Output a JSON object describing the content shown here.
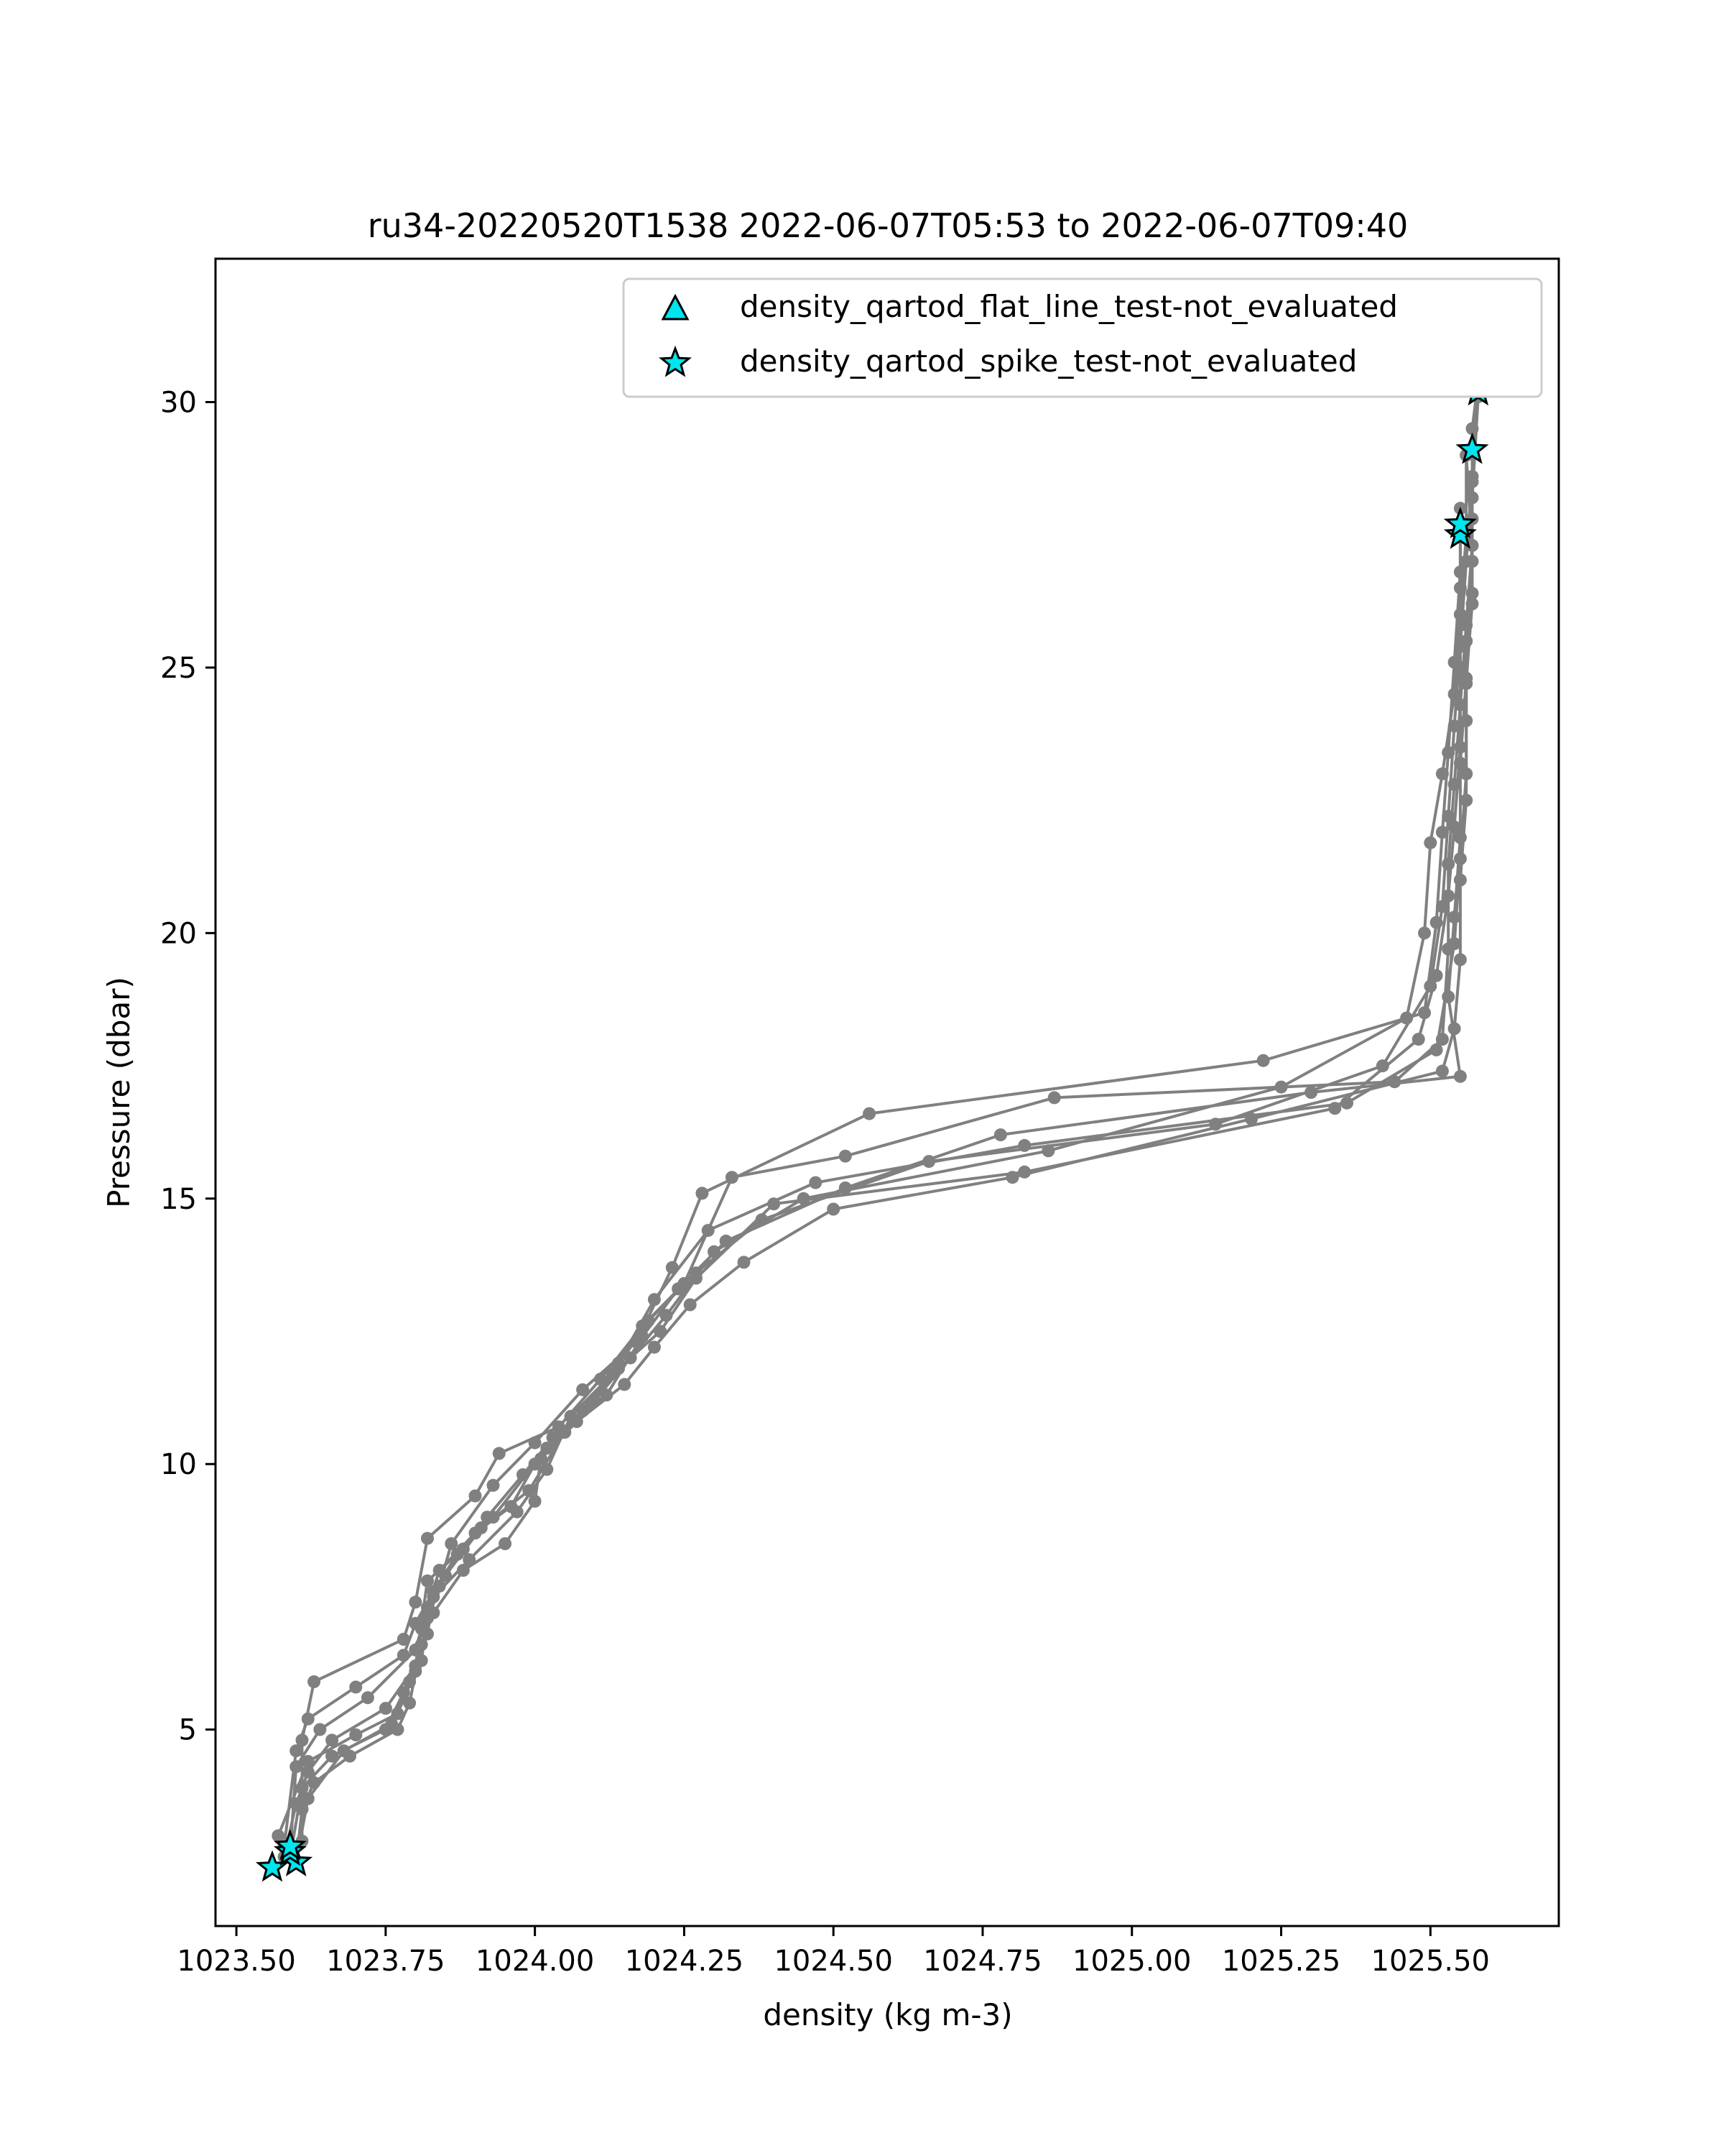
{
  "chart_data": {
    "type": "line",
    "title": "ru34-20220520T1538 2022-06-07T05:53 to 2022-06-07T09:40",
    "xlabel": "density (kg m-3)",
    "ylabel": "Pressure (dbar)",
    "xlim": [
      1023.465,
      1025.715
    ],
    "ylim": [
      32.7,
      1.3
    ],
    "y_inverted": true,
    "grid": false,
    "x_ticks": [
      1023.5,
      1023.75,
      1024.0,
      1024.25,
      1024.5,
      1024.75,
      1025.0,
      1025.25,
      1025.5
    ],
    "x_tick_labels": [
      "1023.50",
      "1023.75",
      "1024.00",
      "1024.25",
      "1024.50",
      "1024.75",
      "1025.00",
      "1025.25",
      "1025.50"
    ],
    "y_ticks": [
      5,
      10,
      15,
      20,
      25,
      30
    ],
    "y_tick_labels": [
      "5",
      "10",
      "15",
      "20",
      "25",
      "30"
    ],
    "line_color": "#808080",
    "marker_fill": "#00e5ee",
    "legend": {
      "location": "upper right",
      "entries": [
        {
          "label": "density_qartod_flat_line_test-not_evaluated",
          "marker": "triangle",
          "color": "#00e5ee"
        },
        {
          "label": "density_qartod_spike_test-not_evaluated",
          "marker": "star",
          "color": "#00e5ee"
        }
      ]
    },
    "series": [
      {
        "points": [
          [
            1023.6,
            2.5
          ],
          [
            1023.61,
            3.5
          ],
          [
            1023.63,
            4.0
          ],
          [
            1023.69,
            4.5
          ],
          [
            1023.77,
            5.0
          ],
          [
            1023.79,
            5.5
          ],
          [
            1023.81,
            6.6
          ],
          [
            1023.83,
            7.2
          ],
          [
            1023.88,
            8.0
          ],
          [
            1023.95,
            8.5
          ],
          [
            1024.0,
            9.3
          ],
          [
            1024.01,
            10.1
          ],
          [
            1024.07,
            10.8
          ],
          [
            1024.15,
            11.5
          ],
          [
            1024.2,
            12.2
          ],
          [
            1024.26,
            13.0
          ],
          [
            1024.35,
            13.8
          ],
          [
            1024.5,
            14.8
          ],
          [
            1024.8,
            15.4
          ],
          [
            1025.2,
            16.5
          ],
          [
            1025.52,
            17.4
          ],
          [
            1025.54,
            18.2
          ],
          [
            1025.55,
            19.5
          ],
          [
            1025.55,
            21.0
          ],
          [
            1025.56,
            22.5
          ],
          [
            1025.56,
            24.0
          ],
          [
            1025.56,
            25.5
          ],
          [
            1025.57,
            27.0
          ],
          [
            1025.57,
            28.5
          ],
          [
            1025.58,
            30.2
          ]
        ]
      },
      {
        "points": [
          [
            1023.58,
            2.6
          ],
          [
            1023.6,
            3.6
          ],
          [
            1023.62,
            4.2
          ],
          [
            1023.66,
            4.8
          ],
          [
            1023.75,
            5.4
          ],
          [
            1023.8,
            6.2
          ],
          [
            1023.81,
            7.0
          ],
          [
            1023.82,
            7.8
          ],
          [
            1023.88,
            8.4
          ],
          [
            1023.93,
            9.0
          ],
          [
            1024.02,
            10.3
          ],
          [
            1024.08,
            11.0
          ],
          [
            1024.14,
            11.8
          ],
          [
            1024.21,
            12.5
          ],
          [
            1024.27,
            13.5
          ],
          [
            1024.4,
            14.9
          ],
          [
            1024.82,
            15.5
          ],
          [
            1025.34,
            16.7
          ],
          [
            1025.48,
            18.0
          ],
          [
            1025.51,
            19.2
          ],
          [
            1025.53,
            20.7
          ],
          [
            1025.54,
            22.0
          ],
          [
            1025.55,
            23.5
          ],
          [
            1025.55,
            25.0
          ],
          [
            1025.55,
            26.5
          ],
          [
            1025.55,
            27.6
          ]
        ]
      },
      {
        "points": [
          [
            1023.59,
            2.7
          ],
          [
            1023.6,
            4.3
          ],
          [
            1023.64,
            5.0
          ],
          [
            1023.72,
            5.6
          ],
          [
            1023.8,
            6.5
          ],
          [
            1023.82,
            7.3
          ],
          [
            1023.84,
            8.0
          ],
          [
            1023.9,
            8.7
          ],
          [
            1023.96,
            9.2
          ],
          [
            1024.0,
            10.0
          ],
          [
            1024.05,
            10.6
          ],
          [
            1024.1,
            11.2
          ],
          [
            1024.16,
            12.0
          ],
          [
            1024.22,
            12.8
          ],
          [
            1024.3,
            14.0
          ],
          [
            1024.45,
            15.0
          ],
          [
            1024.86,
            15.9
          ],
          [
            1025.25,
            17.1
          ],
          [
            1025.46,
            18.4
          ],
          [
            1025.49,
            20.0
          ],
          [
            1025.5,
            21.7
          ],
          [
            1025.52,
            23.0
          ],
          [
            1025.54,
            24.5
          ],
          [
            1025.55,
            26.0
          ],
          [
            1025.56,
            27.5
          ],
          [
            1025.56,
            29.0
          ]
        ]
      },
      {
        "points": [
          [
            1023.58,
            2.8
          ],
          [
            1023.6,
            4.6
          ],
          [
            1023.62,
            5.2
          ],
          [
            1023.7,
            5.8
          ],
          [
            1023.78,
            6.4
          ],
          [
            1023.8,
            7.0
          ],
          [
            1023.83,
            7.6
          ],
          [
            1023.87,
            8.3
          ],
          [
            1023.92,
            9.0
          ],
          [
            1023.98,
            9.8
          ],
          [
            1024.03,
            10.5
          ],
          [
            1024.12,
            11.3
          ],
          [
            1024.18,
            12.4
          ],
          [
            1024.24,
            13.3
          ],
          [
            1024.32,
            14.2
          ],
          [
            1024.52,
            15.2
          ],
          [
            1024.78,
            16.2
          ],
          [
            1025.3,
            17.0
          ],
          [
            1025.55,
            17.3
          ],
          [
            1025.53,
            18.8
          ],
          [
            1025.54,
            20.3
          ],
          [
            1025.55,
            21.8
          ],
          [
            1025.55,
            23.2
          ],
          [
            1025.56,
            24.8
          ],
          [
            1025.57,
            26.2
          ],
          [
            1025.57,
            27.8
          ],
          [
            1025.57,
            29.5
          ],
          [
            1025.59,
            31.3
          ]
        ]
      },
      {
        "points": [
          [
            1023.61,
            2.9
          ],
          [
            1023.61,
            4.8
          ],
          [
            1023.63,
            5.9
          ],
          [
            1023.78,
            6.7
          ],
          [
            1023.8,
            7.4
          ],
          [
            1023.82,
            8.6
          ],
          [
            1023.9,
            9.4
          ],
          [
            1023.94,
            10.2
          ],
          [
            1024.04,
            10.7
          ],
          [
            1024.11,
            11.6
          ],
          [
            1024.18,
            12.6
          ],
          [
            1024.25,
            13.4
          ],
          [
            1024.33,
            15.4
          ],
          [
            1024.52,
            15.8
          ],
          [
            1024.87,
            16.9
          ],
          [
            1025.44,
            17.2
          ],
          [
            1025.52,
            18.0
          ],
          [
            1025.53,
            19.7
          ],
          [
            1025.53,
            21.3
          ],
          [
            1025.54,
            22.8
          ],
          [
            1025.55,
            24.3
          ],
          [
            1025.56,
            25.8
          ],
          [
            1025.57,
            27.3
          ],
          [
            1025.56,
            29.0
          ]
        ]
      },
      {
        "points": [
          [
            1023.57,
            3.0
          ],
          [
            1023.62,
            4.4
          ],
          [
            1023.7,
            4.9
          ],
          [
            1023.77,
            5.3
          ],
          [
            1023.8,
            6.1
          ],
          [
            1023.81,
            6.9
          ],
          [
            1023.84,
            7.7
          ],
          [
            1023.86,
            8.5
          ],
          [
            1023.93,
            9.6
          ],
          [
            1024.0,
            10.4
          ],
          [
            1024.08,
            11.4
          ],
          [
            1024.17,
            12.3
          ],
          [
            1024.23,
            13.7
          ],
          [
            1024.28,
            15.1
          ],
          [
            1024.56,
            16.6
          ],
          [
            1025.22,
            17.6
          ],
          [
            1025.49,
            18.5
          ],
          [
            1025.51,
            20.2
          ],
          [
            1025.52,
            21.9
          ],
          [
            1025.53,
            23.4
          ],
          [
            1025.54,
            25.1
          ],
          [
            1025.55,
            26.8
          ],
          [
            1025.55,
            28.0
          ]
        ]
      },
      {
        "points": [
          [
            1023.6,
            2.5
          ],
          [
            1023.62,
            3.7
          ],
          [
            1023.68,
            4.6
          ],
          [
            1023.76,
            5.1
          ],
          [
            1023.79,
            5.9
          ],
          [
            1023.82,
            6.8
          ],
          [
            1023.83,
            7.5
          ],
          [
            1023.89,
            8.2
          ],
          [
            1023.97,
            9.1
          ],
          [
            1024.02,
            9.9
          ],
          [
            1024.06,
            10.9
          ],
          [
            1024.13,
            11.7
          ],
          [
            1024.19,
            12.7
          ],
          [
            1024.27,
            13.6
          ],
          [
            1024.38,
            14.6
          ],
          [
            1024.66,
            15.7
          ],
          [
            1025.14,
            16.4
          ],
          [
            1025.42,
            17.5
          ],
          [
            1025.5,
            19.0
          ],
          [
            1025.52,
            20.5
          ],
          [
            1025.53,
            22.2
          ],
          [
            1025.54,
            23.9
          ],
          [
            1025.55,
            25.4
          ],
          [
            1025.56,
            27.0
          ],
          [
            1025.57,
            28.6
          ],
          [
            1025.58,
            30.5
          ],
          [
            1025.59,
            31.4
          ]
        ]
      },
      {
        "points": [
          [
            1023.59,
            2.6
          ],
          [
            1023.61,
            3.9
          ],
          [
            1023.66,
            4.5
          ],
          [
            1023.75,
            5.0
          ],
          [
            1023.78,
            5.7
          ],
          [
            1023.81,
            6.3
          ],
          [
            1023.82,
            7.1
          ],
          [
            1023.85,
            7.9
          ],
          [
            1023.91,
            8.8
          ],
          [
            1023.99,
            9.5
          ],
          [
            1024.05,
            10.6
          ],
          [
            1024.14,
            11.9
          ],
          [
            1024.2,
            13.1
          ],
          [
            1024.29,
            14.4
          ],
          [
            1024.47,
            15.3
          ],
          [
            1024.82,
            16.0
          ],
          [
            1025.36,
            16.8
          ],
          [
            1025.51,
            17.8
          ],
          [
            1025.54,
            19.8
          ],
          [
            1025.55,
            21.4
          ],
          [
            1025.56,
            23.0
          ],
          [
            1025.56,
            24.7
          ],
          [
            1025.57,
            26.4
          ],
          [
            1025.57,
            28.2
          ],
          [
            1025.58,
            30.1
          ]
        ]
      }
    ],
    "flagged_points": [
      [
        1023.56,
        2.4
      ],
      [
        1023.6,
        2.5
      ],
      [
        1023.59,
        2.7
      ],
      [
        1023.59,
        2.8
      ],
      [
        1025.55,
        27.5
      ],
      [
        1025.55,
        27.7
      ],
      [
        1025.57,
        29.1
      ],
      [
        1025.58,
        30.2
      ],
      [
        1025.6,
        31.4
      ]
    ]
  }
}
